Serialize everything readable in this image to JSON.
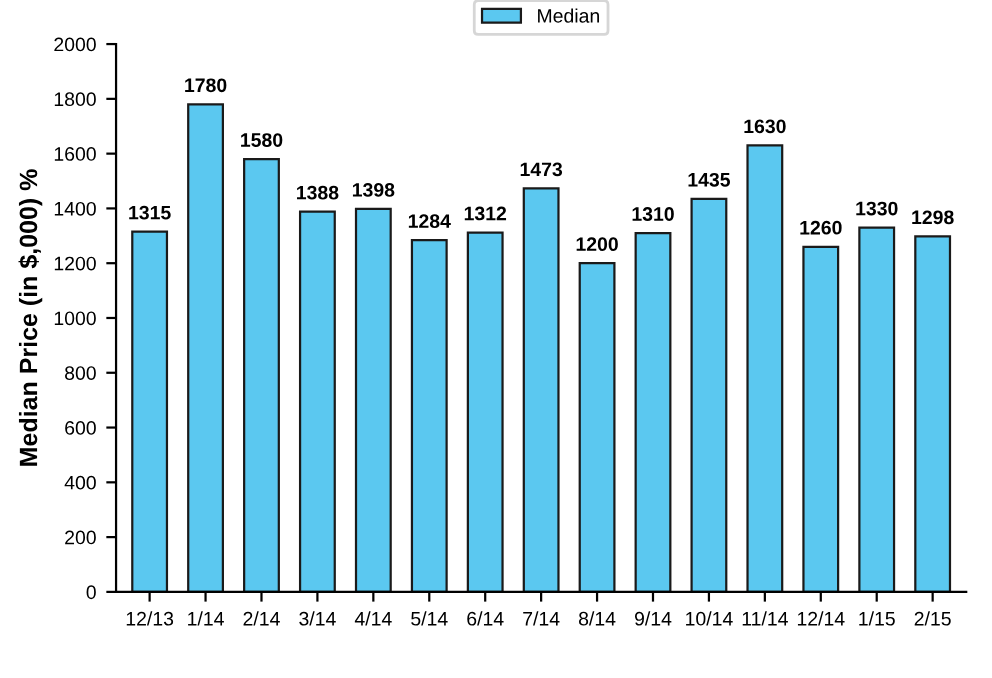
{
  "chart_data": {
    "type": "bar",
    "ylabel": "Median Price (in $,000) %",
    "categories": [
      "12/13",
      "1/14",
      "2/14",
      "3/14",
      "4/14",
      "5/14",
      "6/14",
      "7/14",
      "8/14",
      "9/14",
      "10/14",
      "11/14",
      "12/14",
      "1/15",
      "2/15"
    ],
    "series": [
      {
        "name": "Median",
        "color": "#5bc8f0",
        "values": [
          1315,
          1780,
          1580,
          1388,
          1398,
          1284,
          1312,
          1473,
          1200,
          1310,
          1435,
          1630,
          1260,
          1330,
          1298
        ]
      }
    ],
    "ylim": [
      0,
      2000
    ],
    "yticks": [
      0,
      200,
      400,
      600,
      800,
      1000,
      1200,
      1400,
      1600,
      1800,
      2000
    ],
    "data_labels": true,
    "legend": "top",
    "grid": false
  }
}
